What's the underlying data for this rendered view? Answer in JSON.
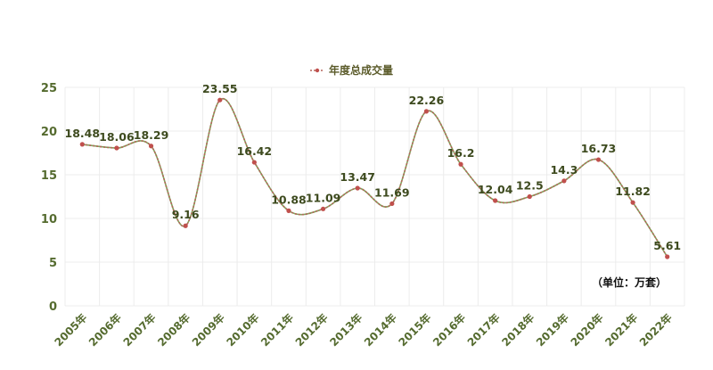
{
  "chart_data": {
    "type": "line",
    "title": "",
    "xlabel": "",
    "ylabel": "",
    "legend": "top-center",
    "grid": true,
    "ylim": [
      0,
      25
    ],
    "yticks": [
      0,
      5,
      10,
      15,
      20,
      25
    ],
    "categories": [
      "2005年",
      "2006年",
      "2007年",
      "2008年",
      "2009年",
      "2010年",
      "2011年",
      "2012年",
      "2013年",
      "2014年",
      "2015年",
      "2016年",
      "2017年",
      "2018年",
      "2019年",
      "2020年",
      "2021年",
      "2022年"
    ],
    "series": [
      {
        "name": "年度总成交量",
        "values": [
          18.48,
          18.06,
          18.29,
          9.16,
          23.55,
          16.42,
          10.88,
          11.09,
          13.47,
          11.69,
          22.26,
          16.2,
          12.04,
          12.5,
          14.3,
          16.73,
          11.82,
          5.61
        ],
        "value_labels": [
          "18.48",
          "18.06",
          "18.29",
          "9.16",
          "23.55",
          "16.42",
          "10.88",
          "11.09",
          "13.47",
          "11.69",
          "22.26",
          "16.2",
          "12.04",
          "12.5",
          "14.3",
          "16.73",
          "11.82",
          "5.61"
        ]
      }
    ],
    "annotation": "（单位：万套）",
    "colors": {
      "line": "#b5655a",
      "line_dash": "#7fa35a",
      "marker": "#c0504d",
      "axis_text": "#556b2f",
      "label_text": "#3d4a1e",
      "grid": "#ececec"
    }
  }
}
